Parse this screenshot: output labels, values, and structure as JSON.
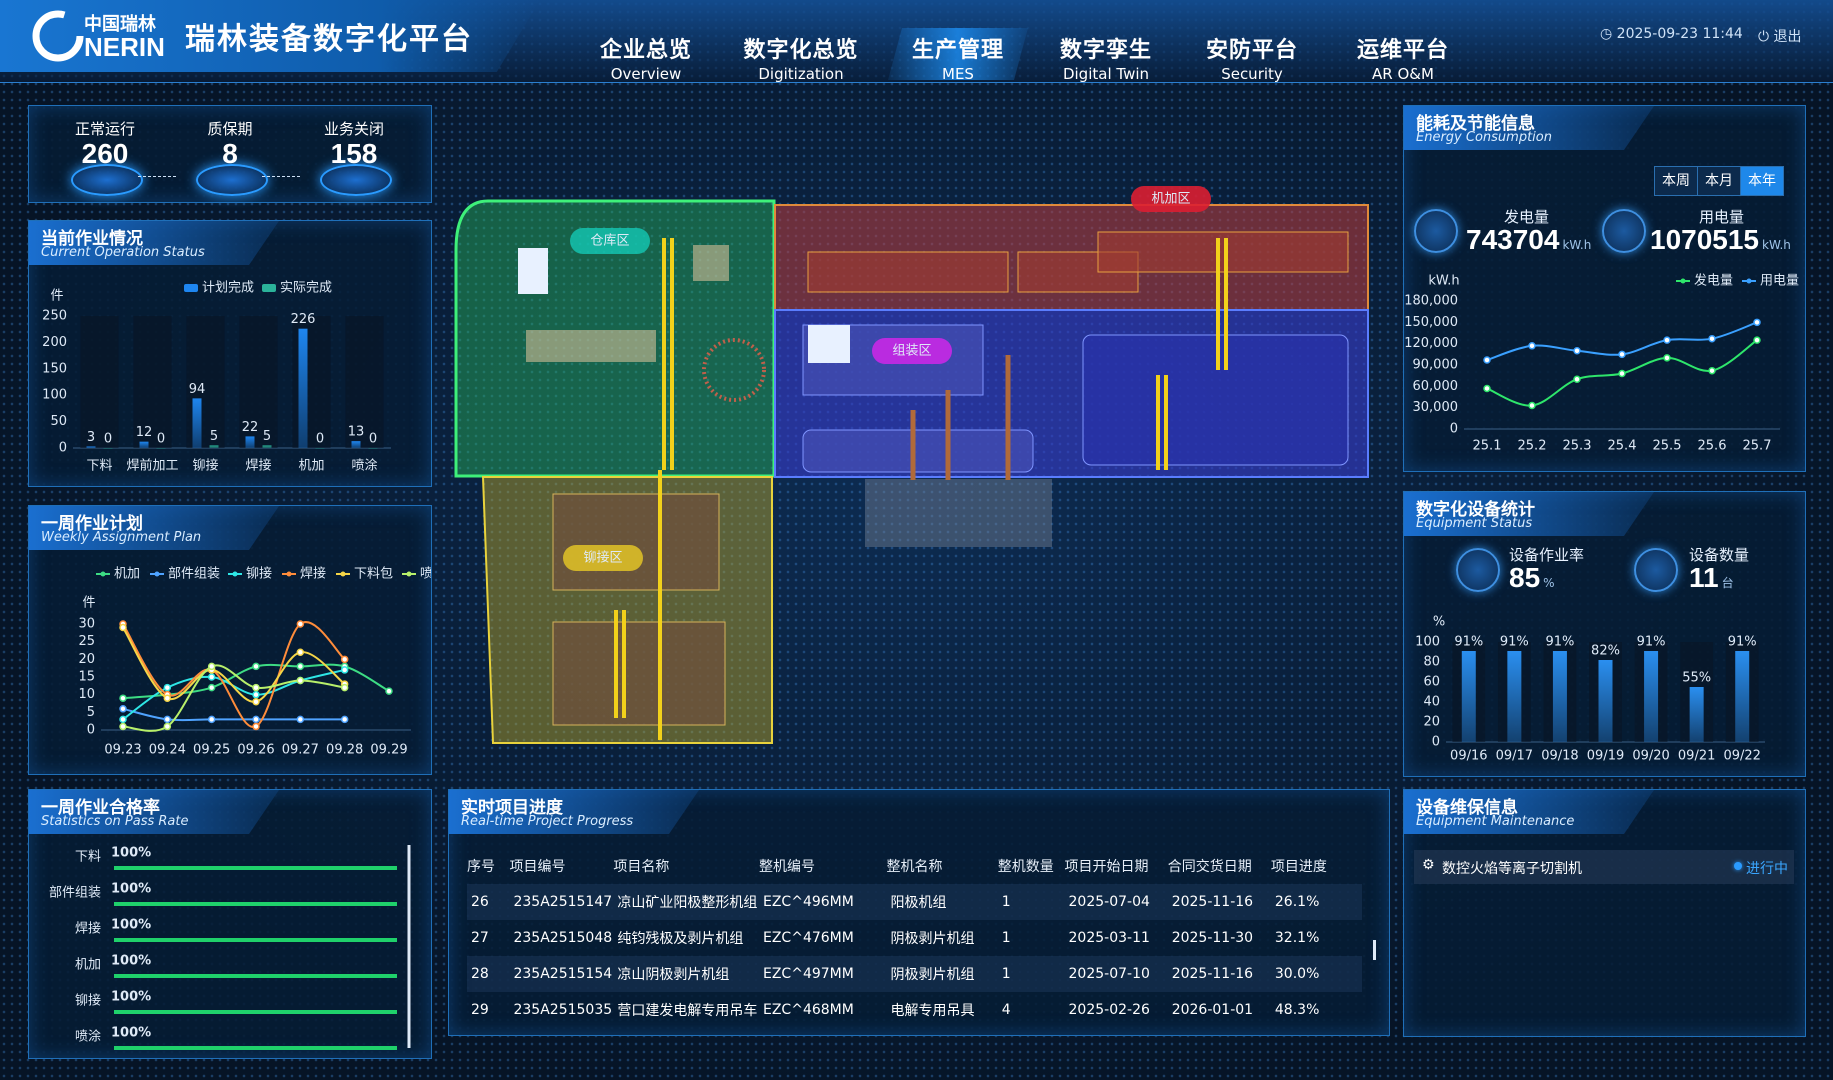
{
  "header": {
    "logo_zh": "中国瑞林",
    "logo_en": "NERIN",
    "title": "瑞林装备数字化平台",
    "datetime": "2025-09-23 11:44",
    "logout": "退出",
    "nav": [
      {
        "zh": "企业总览",
        "en": "Overview"
      },
      {
        "zh": "数字化总览",
        "en": "Digitization"
      },
      {
        "zh": "生产管理",
        "en": "MES",
        "active": true
      },
      {
        "zh": "数字孪生",
        "en": "Digital Twin"
      },
      {
        "zh": "安防平台",
        "en": "Security"
      },
      {
        "zh": "运维平台",
        "en": "AR O&M"
      }
    ]
  },
  "stats": [
    {
      "label": "正常运行",
      "value": 260
    },
    {
      "label": "质保期",
      "value": 8
    },
    {
      "label": "业务关闭",
      "value": 158
    }
  ],
  "chart_data": [
    {
      "type": "bar",
      "title": "当前作业情况",
      "subtitle": "Current Operation Status",
      "y_label": "件",
      "legend": "top",
      "data_labels": true,
      "categories": [
        "下料",
        "焊前加工",
        "铆接",
        "焊接",
        "机加",
        "喷涂"
      ],
      "series": [
        {
          "name": "计划完成",
          "color": "#1e86f0",
          "values": [
            3,
            12,
            94,
            22,
            226,
            13
          ]
        },
        {
          "name": "实际完成",
          "color": "#2bb39a",
          "values": [
            0,
            0,
            5,
            5,
            0,
            0
          ]
        }
      ],
      "ylim": [
        0,
        250
      ],
      "yticks": [
        0,
        50,
        100,
        150,
        200,
        250
      ],
      "grid": false
    },
    {
      "type": "line",
      "title": "一周作业计划",
      "subtitle": "Weekly Assignment Plan",
      "y_label": "件",
      "legend": "top",
      "categories": [
        "09.23",
        "09.24",
        "09.25",
        "09.26",
        "09.27",
        "09.28",
        "09.29"
      ],
      "series": [
        {
          "name": "机加",
          "color": "#3ddc84",
          "values": [
            9,
            10,
            12,
            18,
            18,
            18,
            11
          ]
        },
        {
          "name": "部件组装",
          "color": "#4fa3ff",
          "values": [
            6,
            3,
            3,
            3,
            3,
            3,
            null
          ]
        },
        {
          "name": "铆接",
          "color": "#2ee6e6",
          "values": [
            3,
            12,
            15,
            10,
            14,
            17,
            null
          ]
        },
        {
          "name": "焊接",
          "color": "#ff8c3a",
          "values": [
            30,
            10,
            17,
            1,
            30,
            20,
            null
          ]
        },
        {
          "name": "下料包",
          "color": "#f5d547",
          "values": [
            29,
            9,
            17,
            8,
            22,
            13,
            null
          ]
        },
        {
          "name": "喷涂",
          "color": "#b8f06a",
          "values": [
            1,
            1,
            18,
            12,
            14,
            12,
            null
          ]
        }
      ],
      "ylim": [
        0,
        30
      ],
      "yticks": [
        0,
        5,
        10,
        15,
        20,
        25,
        30
      ],
      "grid": false
    },
    {
      "type": "hbar",
      "title": "一周作业合格率",
      "subtitle": "Statistics on Pass Rate",
      "color": "#1fd16b",
      "categories": [
        "下料",
        "部件组装",
        "焊接",
        "机加",
        "铆接",
        "喷涂"
      ],
      "values": [
        100,
        100,
        100,
        100,
        100,
        100
      ],
      "value_labels": [
        "100%",
        "100%",
        "100%",
        "100%",
        "100%",
        "100%"
      ],
      "xlim": [
        0,
        100
      ]
    },
    {
      "type": "line",
      "title": "能耗及节能信息",
      "subtitle": "Energy Consumption",
      "y_label": "kW.h",
      "legend": "top",
      "tabs": [
        {
          "label": "本周"
        },
        {
          "label": "本月"
        },
        {
          "label": "本年",
          "active": true
        }
      ],
      "kpis": [
        {
          "label": "发电量",
          "value": 743704,
          "unit": "kW.h"
        },
        {
          "label": "用电量",
          "value": 1070515,
          "unit": "kW.h"
        }
      ],
      "categories": [
        "25.1",
        "25.2",
        "25.3",
        "25.4",
        "25.5",
        "25.6",
        "25.7"
      ],
      "series": [
        {
          "name": "发电量",
          "color": "#2ee66b",
          "values": [
            57000,
            33000,
            70000,
            78000,
            100000,
            82000,
            125000
          ]
        },
        {
          "name": "用电量",
          "color": "#3aa0ff",
          "values": [
            97000,
            117000,
            110000,
            105000,
            125000,
            127000,
            150000
          ]
        }
      ],
      "ylim": [
        0,
        180000
      ],
      "yticks": [
        0,
        {
          "value": 30000,
          "label": "30,000"
        },
        {
          "value": 60000,
          "label": "60,000"
        },
        {
          "value": 90000,
          "label": "90,000"
        },
        {
          "value": 120000,
          "label": "120,000"
        },
        {
          "value": 150000,
          "label": "150,000"
        },
        {
          "value": 180000,
          "label": "180,000"
        }
      ],
      "grid": false
    },
    {
      "type": "bar",
      "title": "数字化设备统计",
      "subtitle": "Equipment Status",
      "y_label": "%",
      "data_labels": true,
      "color": "#2a8ff0",
      "kpis": [
        {
          "label": "设备作业率",
          "value": 85,
          "unit": "%"
        },
        {
          "label": "设备数量",
          "value": 11,
          "unit": "台"
        }
      ],
      "categories": [
        "09/16",
        "09/17",
        "09/18",
        "09/19",
        "09/20",
        "09/21",
        "09/22"
      ],
      "values": [
        91,
        91,
        91,
        82,
        91,
        55,
        91
      ],
      "value_labels": [
        "91%",
        "91%",
        "91%",
        "82%",
        "91%",
        "55%",
        "91%"
      ],
      "ylim": [
        0,
        100
      ],
      "yticks": [
        0,
        20,
        40,
        60,
        80,
        100
      ],
      "grid": false
    }
  ],
  "table": {
    "title": "实时项目进度",
    "subtitle": "Real-time Project Progress",
    "columns": [
      "序号",
      "项目编号",
      "项目名称",
      "整机编号",
      "整机名称",
      "整机数量",
      "项目开始日期",
      "合同交货日期",
      "项目进度"
    ],
    "rows": [
      [
        26,
        "235A2515147",
        "凉山矿业阳极整形机组",
        "EZC^496MM",
        "阳极机组",
        1,
        "2025-07-04",
        "2025-11-16",
        "26.1%"
      ],
      [
        27,
        "235A2515048",
        "纯钧残极及剥片机组",
        "EZC^476MM",
        "阴极剥片机组",
        1,
        "2025-03-11",
        "2025-11-30",
        "32.1%"
      ],
      [
        28,
        "235A2515154",
        "凉山阴极剥片机组",
        "EZC^497MM",
        "阴极剥片机组",
        1,
        "2025-07-10",
        "2025-11-16",
        "30.0%"
      ],
      [
        29,
        "235A2515035",
        "营口建发电解专用吊车",
        "EZC^468MM",
        "电解专用吊具",
        4,
        "2025-02-26",
        "2026-01-01",
        "48.3%"
      ]
    ]
  },
  "maintenance": {
    "title": "设备维保信息",
    "subtitle": "Equipment Maintenance",
    "items": [
      {
        "name": "数控火焰等离子切割机",
        "status": "进行中"
      }
    ]
  },
  "map": {
    "zones": [
      "仓库区",
      "机加区",
      "组装区",
      "铆接区"
    ]
  }
}
